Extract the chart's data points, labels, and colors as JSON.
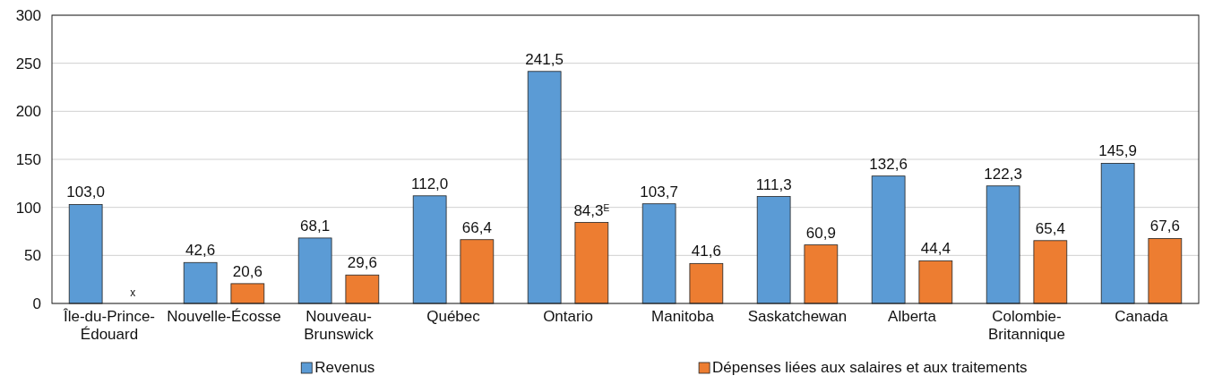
{
  "chart_data": {
    "type": "bar",
    "categories": [
      "Île-du-Prince-\nÉdouard",
      "Nouvelle-Écosse",
      "Nouveau-\nBrunswick",
      "Québec",
      "Ontario",
      "Manitoba",
      "Saskatchewan",
      "Alberta",
      "Colombie-\nBritannique",
      "Canada"
    ],
    "series": [
      {
        "name": "Revenus",
        "color": "#5b9bd5",
        "values": [
          103.0,
          42.6,
          68.1,
          112.0,
          241.5,
          103.7,
          111.3,
          132.6,
          122.3,
          145.9
        ],
        "value_labels": [
          "103,0",
          "42,6",
          "68,1",
          "112,0",
          "241,5",
          "103,7",
          "111,3",
          "132,6",
          "122,3",
          "145,9"
        ]
      },
      {
        "name": "Dépenses liées aux salaires et aux traitements",
        "color": "#ed7d31",
        "values": [
          null,
          20.6,
          29.6,
          66.4,
          84.3,
          41.6,
          60.9,
          44.4,
          65.4,
          67.6
        ],
        "value_labels": [
          "x",
          "20,6",
          "29,6",
          "66,4",
          "84,3$^{E}$",
          "41,6",
          "60,9",
          "44,4",
          "65,4",
          "67,6"
        ]
      }
    ],
    "ylim": [
      0,
      300
    ],
    "yticks": [
      0,
      50,
      100,
      150,
      200,
      250,
      300
    ],
    "grid": "y",
    "legend": "bottom"
  }
}
